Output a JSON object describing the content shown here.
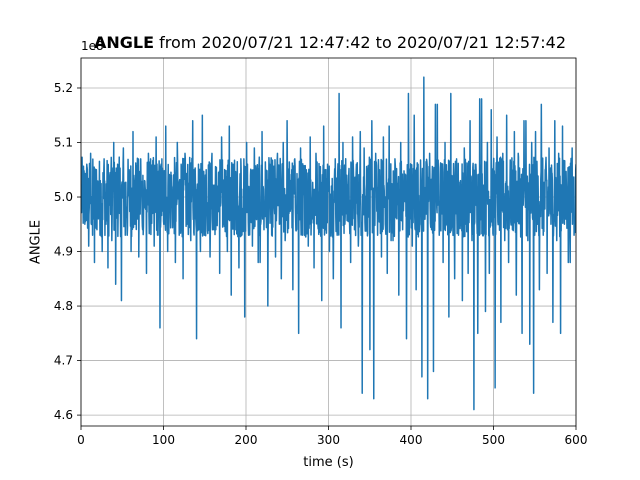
{
  "chart_data": {
    "type": "line",
    "title_bold": "ANGLE",
    "title_rest": "from 2020/07/21 12:47:42 to 2020/07/21 12:57:42",
    "xlabel": "time (s)",
    "ylabel": "ANGLE",
    "y_offset_label": "1e8",
    "xlim": [
      0,
      600
    ],
    "ylim": [
      4.58,
      5.255
    ],
    "x_ticks": [
      0,
      100,
      200,
      300,
      400,
      500,
      600
    ],
    "y_ticks": [
      4.6,
      4.7,
      4.8,
      4.9,
      5.0,
      5.1,
      5.2
    ],
    "grid": true,
    "line_color": "#1f77b4",
    "series": [
      {
        "x_start": 0,
        "x_end": 600,
        "baseline": 5.0,
        "noise_band": [
          4.93,
          5.07
        ],
        "values": [
          5.02,
          4.95,
          5.06,
          4.91,
          5.08,
          4.93,
          4.88,
          5.05,
          4.96,
          5.03,
          4.9,
          5.07,
          4.95,
          4.87,
          5.04,
          4.92,
          5.1,
          4.84,
          5.06,
          4.97,
          4.81,
          5.09,
          4.93,
          5.05,
          4.9,
          5.12,
          4.95,
          5.02,
          4.89,
          5.07,
          4.94,
          5.03,
          4.86,
          5.08,
          4.96,
          5.0,
          4.91,
          5.11,
          4.93,
          4.76,
          5.07,
          4.95,
          5.13,
          4.9,
          5.04,
          4.97,
          4.88,
          5.1,
          4.93,
          5.06,
          4.85,
          5.08,
          4.95,
          5.02,
          4.92,
          5.14,
          4.96,
          4.74,
          5.06,
          4.9,
          5.15,
          4.93,
          5.05,
          4.97,
          4.89,
          5.08,
          4.94,
          5.02,
          4.86,
          5.11,
          4.95,
          5.04,
          4.9,
          5.13,
          4.82,
          5.06,
          4.94,
          5.01,
          4.87,
          5.07,
          4.95,
          4.78,
          5.1,
          4.93,
          5.04,
          4.91,
          5.09,
          4.96,
          4.88,
          5.12,
          4.94,
          5.05,
          4.8,
          5.06,
          4.93,
          5.02,
          4.89,
          5.08,
          4.95,
          4.85,
          5.1,
          4.92,
          5.14,
          4.97,
          5.03,
          4.83,
          5.07,
          4.94,
          4.75,
          5.09,
          4.93,
          5.05,
          4.91,
          5.11,
          4.96,
          4.87,
          5.08,
          4.95,
          5.03,
          4.81,
          5.13,
          4.94,
          5.06,
          4.9,
          5.02,
          4.85,
          5.07,
          4.93,
          5.19,
          4.76,
          5.1,
          4.95,
          5.04,
          4.88,
          5.11,
          4.94,
          5.06,
          4.91,
          5.12,
          4.64,
          5.09,
          4.95,
          5.02,
          4.72,
          5.14,
          4.63,
          5.08,
          4.93,
          5.05,
          4.89,
          5.11,
          4.95,
          4.86,
          5.13,
          4.92,
          5.07,
          4.96,
          4.82,
          5.1,
          4.94,
          5.04,
          4.74,
          5.19,
          4.96,
          4.91,
          5.15,
          4.83,
          5.06,
          4.95,
          4.67,
          5.22,
          4.97,
          4.63,
          5.08,
          4.94,
          4.68,
          5.17,
          4.93,
          5.05,
          4.88,
          5.1,
          4.95,
          4.78,
          5.19,
          4.96,
          4.85,
          5.07,
          4.93,
          5.03,
          4.81,
          5.09,
          4.95,
          4.86,
          5.14,
          4.92,
          4.61,
          5.06,
          4.75,
          5.18,
          4.94,
          4.79,
          5.1,
          4.86,
          5.16,
          4.93,
          4.65,
          5.11,
          4.95,
          4.77,
          5.08,
          4.92,
          5.15,
          4.88,
          5.06,
          4.94,
          5.12,
          4.82,
          5.08,
          4.95,
          4.75,
          5.14,
          4.92,
          4.73,
          5.1,
          4.64,
          5.12,
          4.95,
          4.83,
          5.17,
          4.93,
          5.05,
          4.86,
          5.09,
          4.95,
          4.77,
          5.14,
          4.92,
          5.08,
          4.75,
          5.13,
          4.95,
          5.02,
          4.88,
          5.09,
          4.93,
          5.06
        ]
      }
    ]
  }
}
